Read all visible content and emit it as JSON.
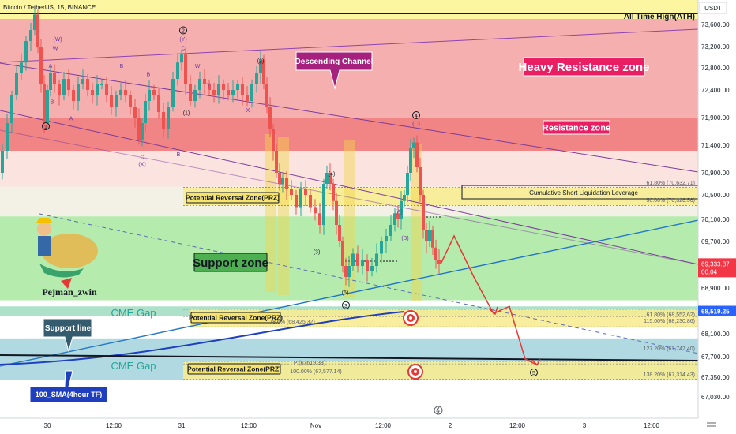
{
  "header": {
    "symbol": "Bitcoin / TetherUS, 15, BINANCE",
    "currency": "USDT"
  },
  "watermark": {
    "author": "Pejman_zwin"
  },
  "chart_data": {
    "type": "candlestick",
    "symbol": "BTC/USDT",
    "timeframe": "15",
    "exchange": "BINANCE",
    "x_ticks": [
      "30",
      "12:00",
      "31",
      "12:00",
      "Nov",
      "12:00",
      "2",
      "12:00",
      "3",
      "12:00"
    ],
    "y_ticks": [
      73600,
      73200,
      72800,
      72400,
      71900,
      71400,
      70900,
      70500,
      70100,
      69700,
      69300,
      68900,
      68500,
      68100,
      67700,
      67350,
      67030
    ],
    "y_tick_labels": [
      "73,600.00",
      "73,200.00",
      "72,800.00",
      "72,400.00",
      "71,900.00",
      "71,400.00",
      "70,900.00",
      "70,500.00",
      "70,100.00",
      "69,700.00",
      "69,300.00",
      "68,900.00",
      "68,500.00",
      "68,100.00",
      "67,700.00",
      "67,350.00",
      "67,030.00"
    ],
    "ylim": [
      66750,
      73960
    ],
    "current_price": {
      "value": "69,333.87",
      "countdown": "00:04",
      "value_num": 69333.87,
      "color": "#f23645"
    },
    "sma_price": {
      "value": "68,519.25",
      "value_num": 68519.25,
      "color": "#2962ff"
    },
    "price_path": [
      [
        0,
        70900
      ],
      [
        6,
        71300
      ],
      [
        12,
        71800
      ],
      [
        18,
        72300
      ],
      [
        24,
        72700
      ],
      [
        30,
        72900
      ],
      [
        36,
        73300
      ],
      [
        42,
        73500
      ],
      [
        46,
        73780
      ],
      [
        50,
        73200
      ],
      [
        54,
        72500
      ],
      [
        58,
        71800
      ],
      [
        62,
        72400
      ],
      [
        66,
        72700
      ],
      [
        72,
        72500
      ],
      [
        78,
        72300
      ],
      [
        84,
        72600
      ],
      [
        90,
        72400
      ],
      [
        96,
        72200
      ],
      [
        102,
        72500
      ],
      [
        108,
        72600
      ],
      [
        114,
        72400
      ],
      [
        120,
        72300
      ],
      [
        126,
        72500
      ],
      [
        132,
        72500
      ],
      [
        138,
        72300
      ],
      [
        144,
        72100
      ],
      [
        150,
        72300
      ],
      [
        156,
        72400
      ],
      [
        162,
        72300
      ],
      [
        168,
        72100
      ],
      [
        174,
        71900
      ],
      [
        178,
        71500
      ],
      [
        182,
        71800
      ],
      [
        186,
        72200
      ],
      [
        192,
        72400
      ],
      [
        198,
        72300
      ],
      [
        204,
        72000
      ],
      [
        210,
        71700
      ],
      [
        216,
        72100
      ],
      [
        222,
        72600
      ],
      [
        228,
        72900
      ],
      [
        232,
        73050
      ],
      [
        238,
        72500
      ],
      [
        244,
        72200
      ],
      [
        250,
        72400
      ],
      [
        256,
        72600
      ],
      [
        262,
        72500
      ],
      [
        268,
        72400
      ],
      [
        274,
        72300
      ],
      [
        280,
        72500
      ],
      [
        286,
        72400
      ],
      [
        292,
        72300
      ],
      [
        298,
        72400
      ],
      [
        304,
        72500
      ],
      [
        310,
        72300
      ],
      [
        316,
        72200
      ],
      [
        322,
        72500
      ],
      [
        328,
        72700
      ],
      [
        332,
        72950
      ],
      [
        336,
        72500
      ],
      [
        340,
        72100
      ],
      [
        344,
        71700
      ],
      [
        348,
        71300
      ],
      [
        352,
        70900
      ],
      [
        356,
        70700
      ],
      [
        360,
        70800
      ],
      [
        366,
        70600
      ],
      [
        372,
        70500
      ],
      [
        378,
        70300
      ],
      [
        384,
        70600
      ],
      [
        390,
        70500
      ],
      [
        396,
        70300
      ],
      [
        402,
        70200
      ],
      [
        408,
        70000
      ],
      [
        412,
        70700
      ],
      [
        416,
        70900
      ],
      [
        420,
        70700
      ],
      [
        424,
        70400
      ],
      [
        428,
        70000
      ],
      [
        432,
        69700
      ],
      [
        436,
        69300
      ],
      [
        440,
        69100
      ],
      [
        444,
        69300
      ],
      [
        450,
        69500
      ],
      [
        456,
        69300
      ],
      [
        462,
        69400
      ],
      [
        468,
        69200
      ],
      [
        474,
        69300
      ],
      [
        480,
        69500
      ],
      [
        486,
        69700
      ],
      [
        492,
        69800
      ],
      [
        498,
        70000
      ],
      [
        502,
        70200
      ],
      [
        506,
        70100
      ],
      [
        510,
        70400
      ],
      [
        514,
        70500
      ],
      [
        518,
        70900
      ],
      [
        522,
        71350
      ],
      [
        526,
        71450
      ],
      [
        530,
        71000
      ],
      [
        534,
        70500
      ],
      [
        538,
        69900
      ],
      [
        542,
        69700
      ],
      [
        546,
        69900
      ],
      [
        550,
        69600
      ],
      [
        554,
        69400
      ],
      [
        558,
        69330
      ]
    ],
    "forecast_path": [
      [
        558,
        69330
      ],
      [
        575,
        69800
      ],
      [
        600,
        69100
      ],
      [
        625,
        68480
      ],
      [
        645,
        68600
      ],
      [
        665,
        67660
      ],
      [
        680,
        67560
      ]
    ],
    "zones": [
      {
        "name": "heavy-resistance",
        "label": "Heavy Resistance zone",
        "from": 71900,
        "to": 73700,
        "color": "#f4a6a6"
      },
      {
        "name": "resistance",
        "label": "Resistance zone",
        "from": 71300,
        "to": 71900,
        "color": "#ef7373"
      },
      {
        "name": "support",
        "label": "Support zone",
        "from": 68700,
        "to": 70150,
        "color": "#a9e7a0"
      },
      {
        "name": "cme-gap-1",
        "label": "CME Gap",
        "from": 68430,
        "to": 68600,
        "color": "#9fdcc0"
      },
      {
        "name": "cme-gap-2",
        "label": "CME Gap",
        "from": 67300,
        "to": 68020,
        "color": "#a3d2dc"
      }
    ],
    "prz_zones": [
      {
        "label": "Potential Reversal Zone(PRZ)",
        "from": 70330,
        "to": 70630,
        "x0": 232,
        "x1": 884
      },
      {
        "label": "Potential Reversal Zone(PRZ)",
        "from": 68230,
        "to": 68553,
        "x0": 240,
        "x1": 884
      },
      {
        "label": "Potential Reversal Zone(PRZ)",
        "from": 67314,
        "to": 67620,
        "x0": 232,
        "x1": 884
      }
    ],
    "ath_label": "All Time High(ATH)",
    "ath_value": 73800,
    "annotations": {
      "descending_channel": "Descending Channel",
      "support_zone": "Support zone",
      "support_line": "Support line",
      "sma": "100_SMA(4hour TF)",
      "cumulative": "Cumulative Short Liquidation Leverage"
    },
    "fib_levels": [
      {
        "text": "61.80% (70,632.71)",
        "value": 70632.71
      },
      {
        "text": "50.00% (70,326.56)",
        "value": 70326.56
      },
      {
        "text": "61.80% (68,552.62)",
        "value": 68552.62
      },
      {
        "text": "115.00% (68,230.86)",
        "value": 68230.86
      },
      {
        "text": "78.6% (68,425.32)",
        "value": 68425.32
      },
      {
        "text": "127.20% (67,747.40)",
        "value": 67747.4
      },
      {
        "text": "P (67619.38)",
        "value": 67619.38
      },
      {
        "text": "100.00% (67,577.14)",
        "value": 67577.14
      },
      {
        "text": "138.20% (67,314.43)",
        "value": 67314.43
      }
    ],
    "wave_labels": [
      {
        "text": "1",
        "x": 58,
        "v": 71700,
        "circled": true
      },
      {
        "text": "2",
        "x": 232,
        "v": 73450,
        "circled": true
      },
      {
        "text": "(Y)",
        "x": 232,
        "v": 73300
      },
      {
        "text": "C",
        "x": 232,
        "v": 73130
      },
      {
        "text": "(W)",
        "x": 73,
        "v": 73300
      },
      {
        "text": "W",
        "x": 70,
        "v": 73130
      },
      {
        "text": "A",
        "x": 64,
        "v": 72800
      },
      {
        "text": "B",
        "x": 66,
        "v": 72150
      },
      {
        "text": "B",
        "x": 154,
        "v": 72800
      },
      {
        "text": "B",
        "x": 188,
        "v": 72650
      },
      {
        "text": "C",
        "x": 180,
        "v": 71150
      },
      {
        "text": "(X)",
        "x": 180,
        "v": 71020
      },
      {
        "text": "A",
        "x": 90,
        "v": 71850
      },
      {
        "text": "B",
        "x": 226,
        "v": 71200
      },
      {
        "text": "(1)",
        "x": 236,
        "v": 71950
      },
      {
        "text": "W",
        "x": 250,
        "v": 72800
      },
      {
        "text": "Y",
        "x": 264,
        "v": 72450
      },
      {
        "text": "X",
        "x": 314,
        "v": 72000
      },
      {
        "text": "Z",
        "x": 330,
        "v": 72850
      },
      {
        "text": "(2)",
        "x": 330,
        "v": 72900
      },
      {
        "text": "(4)",
        "x": 420,
        "v": 70850
      },
      {
        "text": "(3)",
        "x": 401,
        "v": 69500
      },
      {
        "text": "(5)",
        "x": 437,
        "v": 68800
      },
      {
        "text": "3",
        "x": 438,
        "v": 68580,
        "circled": true
      },
      {
        "text": "4",
        "x": 527,
        "v": 71900,
        "circled": true
      },
      {
        "text": "(C)",
        "x": 527,
        "v": 71760
      },
      {
        "text": "(A)",
        "x": 505,
        "v": 70200
      },
      {
        "text": "(B)",
        "x": 513,
        "v": 69730
      },
      {
        "text": "5",
        "x": 676,
        "v": 67390,
        "circled": true
      }
    ],
    "legend": "none",
    "grid": false
  }
}
